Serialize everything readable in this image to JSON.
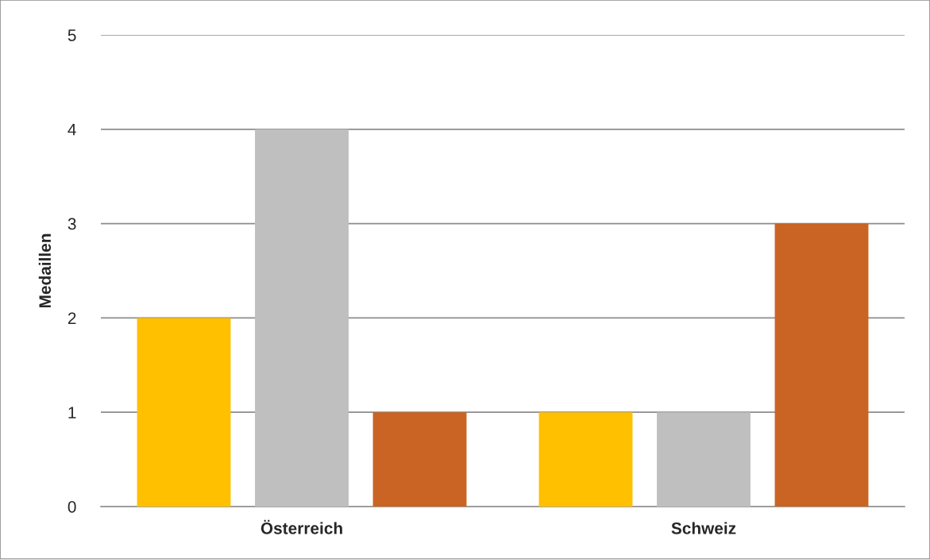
{
  "chart_data": {
    "type": "bar",
    "ylabel": "Medaillen",
    "categories": [
      "Österreich",
      "Schweiz"
    ],
    "series": [
      {
        "color": "#ffc000",
        "values": [
          2,
          1
        ]
      },
      {
        "color": "#bfbfbf",
        "values": [
          4,
          1
        ]
      },
      {
        "color": "#ca6424",
        "values": [
          1,
          3
        ]
      }
    ],
    "ylim": [
      0,
      5
    ],
    "yticks": [
      0,
      1,
      2,
      3,
      4,
      5
    ],
    "grid": "y"
  }
}
